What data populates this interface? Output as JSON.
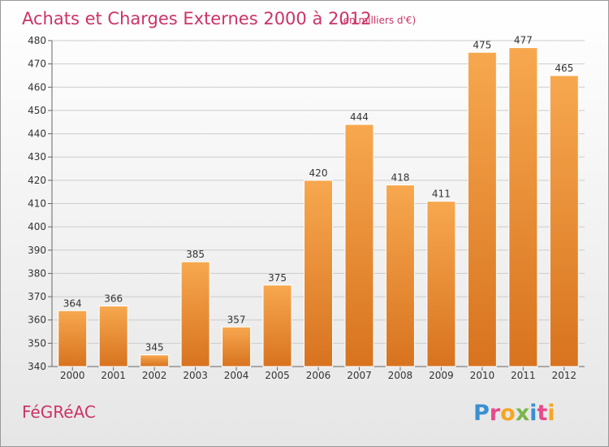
{
  "chart_data": {
    "type": "bar",
    "title": "Achats et Charges Externes 2000 à 2012",
    "subtitle": "(en milliers d'€)",
    "categories": [
      "2000",
      "2001",
      "2002",
      "2003",
      "2004",
      "2005",
      "2006",
      "2007",
      "2008",
      "2009",
      "2010",
      "2011",
      "2012"
    ],
    "values": [
      364,
      366,
      345,
      385,
      357,
      375,
      420,
      444,
      418,
      411,
      475,
      477,
      465
    ],
    "ylim": [
      340,
      480
    ],
    "yticks": [
      340,
      350,
      360,
      370,
      380,
      390,
      400,
      410,
      420,
      430,
      440,
      450,
      460,
      470,
      480
    ],
    "grid": true,
    "legend": "none",
    "bar_color": "#f29a3c",
    "title_color": "#cc3366"
  },
  "commune_name": "FéGRéAC",
  "logo": {
    "text": "Proxiti",
    "letters": [
      {
        "ch": "P",
        "color": "#3a8fd0"
      },
      {
        "ch": "r",
        "color": "#e84a8a"
      },
      {
        "ch": "o",
        "color": "#f5a623"
      },
      {
        "ch": "x",
        "color": "#7ab648"
      },
      {
        "ch": "i",
        "color": "#3a8fd0"
      },
      {
        "ch": "t",
        "color": "#e84a8a"
      },
      {
        "ch": "i",
        "color": "#f5a623"
      }
    ]
  }
}
